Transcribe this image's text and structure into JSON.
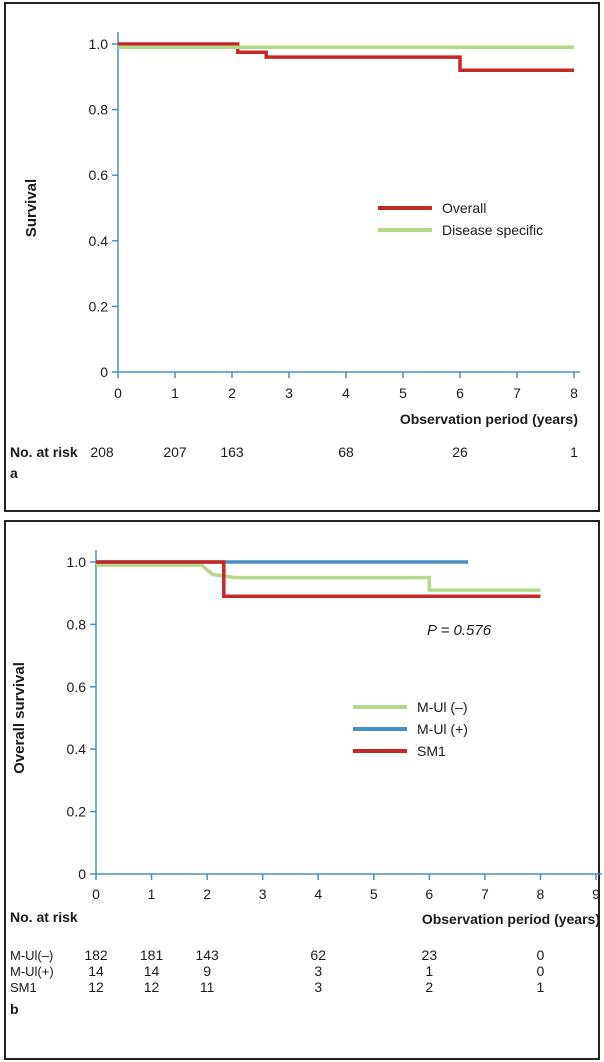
{
  "chart_data": [
    {
      "type": "line",
      "panel_label": "a",
      "xlabel": "Observation period (years)",
      "ylabel": "Survival",
      "xlim": [
        0,
        8
      ],
      "ylim": [
        0,
        1.0
      ],
      "x_ticks": [
        "0",
        "1",
        "2",
        "3",
        "4",
        "5",
        "6",
        "7",
        "8"
      ],
      "y_ticks": [
        "0",
        "0.2",
        "0.4",
        "0.6",
        "0.8",
        "1.0"
      ],
      "legend_position": "right",
      "series": [
        {
          "name": "Overall",
          "color": "#c62828",
          "points": [
            [
              0,
              1.0
            ],
            [
              2.1,
              1.0
            ],
            [
              2.1,
              0.975
            ],
            [
              2.6,
              0.975
            ],
            [
              2.6,
              0.96
            ],
            [
              6.0,
              0.96
            ],
            [
              6.0,
              0.92
            ],
            [
              8.0,
              0.92
            ]
          ]
        },
        {
          "name": "Disease specific",
          "color": "#b5d98a",
          "points": [
            [
              0,
              0.99
            ],
            [
              8.0,
              0.99
            ]
          ]
        }
      ],
      "risk_table": {
        "header": "No. at risk",
        "rows": [
          {
            "name": "",
            "x": [
              0,
              1,
              2,
              4,
              6,
              8
            ],
            "values": [
              "208",
              "207",
              "163",
              "68",
              "26",
              "1"
            ]
          }
        ]
      }
    },
    {
      "type": "line",
      "panel_label": "b",
      "xlabel": "Observation period (years)",
      "ylabel": "Overall survival",
      "xlim": [
        0,
        9
      ],
      "ylim": [
        0,
        1.0
      ],
      "x_ticks": [
        "0",
        "1",
        "2",
        "3",
        "4",
        "5",
        "6",
        "7",
        "8",
        "9"
      ],
      "y_ticks": [
        "0",
        "0.2",
        "0.4",
        "0.6",
        "0.8",
        "1.0"
      ],
      "annotation": "P = 0.576",
      "legend_position": "right",
      "series": [
        {
          "name": "M-Ul (–)",
          "color": "#b5d98a",
          "points": [
            [
              0,
              0.99
            ],
            [
              1.9,
              0.99
            ],
            [
              2.1,
              0.96
            ],
            [
              2.5,
              0.95
            ],
            [
              6.0,
              0.95
            ],
            [
              6.0,
              0.91
            ],
            [
              8.0,
              0.91
            ]
          ]
        },
        {
          "name": "M-Ul (+)",
          "color": "#4a8fc4",
          "points": [
            [
              0,
              1.0
            ],
            [
              6.7,
              1.0
            ]
          ]
        },
        {
          "name": "SM1",
          "color": "#c62828",
          "points": [
            [
              0,
              1.0
            ],
            [
              2.3,
              1.0
            ],
            [
              2.3,
              0.89
            ],
            [
              8.0,
              0.89
            ]
          ]
        }
      ],
      "risk_table": {
        "header": "No. at risk",
        "rows": [
          {
            "name": "M-Ul(–)",
            "x": [
              0,
              1,
              2,
              4,
              6,
              8
            ],
            "values": [
              "182",
              "181",
              "143",
              "62",
              "23",
              "0"
            ]
          },
          {
            "name": "M-Ul(+)",
            "x": [
              0,
              1,
              2,
              4,
              6,
              8
            ],
            "values": [
              "14",
              "14",
              "9",
              "3",
              "1",
              "0"
            ]
          },
          {
            "name": "SM1",
            "x": [
              0,
              1,
              2,
              4,
              6,
              8
            ],
            "values": [
              "12",
              "12",
              "11",
              "3",
              "2",
              "1"
            ]
          }
        ]
      }
    }
  ]
}
